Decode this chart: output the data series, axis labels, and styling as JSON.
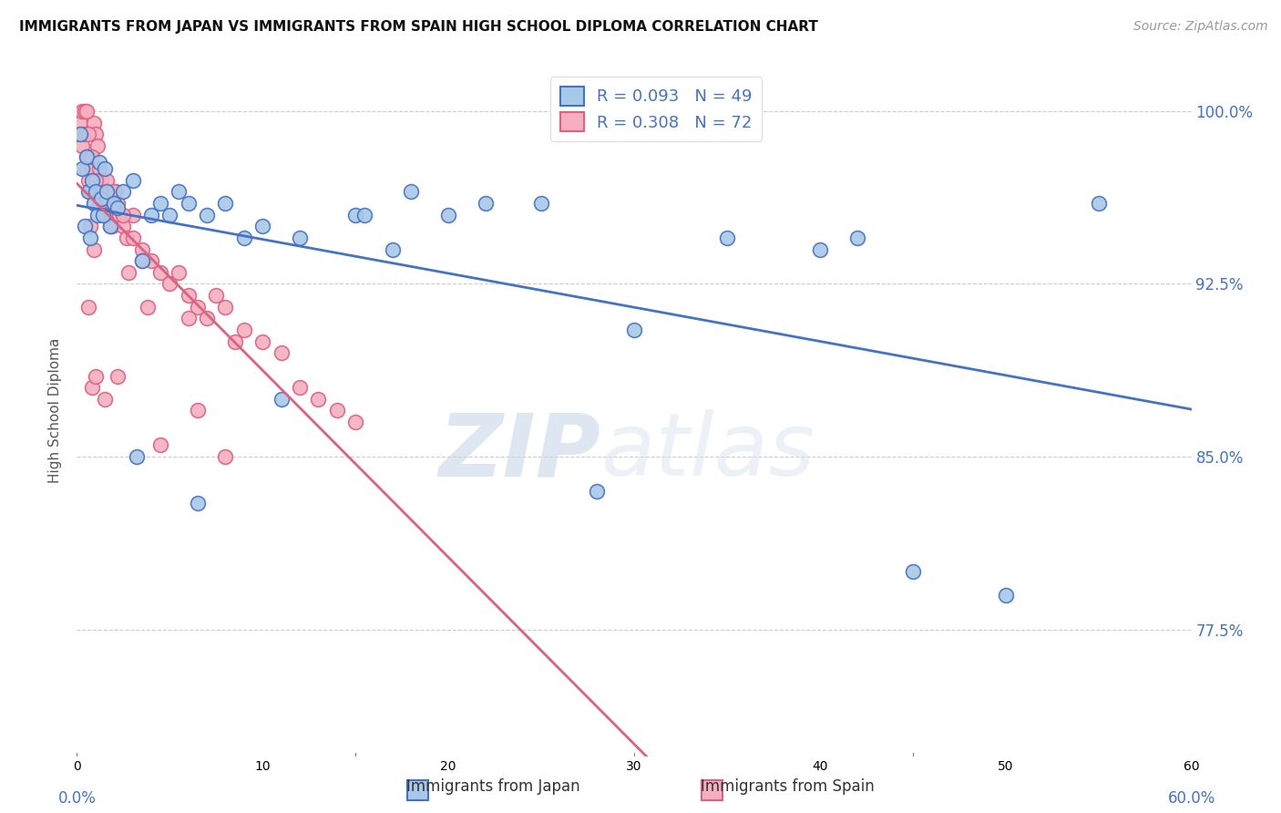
{
  "title": "IMMIGRANTS FROM JAPAN VS IMMIGRANTS FROM SPAIN HIGH SCHOOL DIPLOMA CORRELATION CHART",
  "source": "Source: ZipAtlas.com",
  "ylabel": "High School Diploma",
  "ytick_vals": [
    77.5,
    85.0,
    92.5,
    100.0
  ],
  "ytick_labels": [
    "77.5%",
    "85.0%",
    "92.5%",
    "100.0%"
  ],
  "xmin": 0.0,
  "xmax": 60.0,
  "ymin": 72.0,
  "ymax": 102.0,
  "legend_r_japan": "R = 0.093",
  "legend_n_japan": "N = 49",
  "legend_r_spain": "R = 0.308",
  "legend_n_spain": "N = 72",
  "color_japan_face": "#a8c8e8",
  "color_spain_face": "#f4b0c0",
  "color_japan_edge": "#4472c4",
  "color_spain_edge": "#e06080",
  "color_japan_line": "#4472c4",
  "color_spain_line": "#e06080",
  "japan_x": [
    0.3,
    0.4,
    0.5,
    0.6,
    0.7,
    0.8,
    0.9,
    1.0,
    1.1,
    1.2,
    1.3,
    1.5,
    1.6,
    1.8,
    2.0,
    2.2,
    2.5,
    3.0,
    3.5,
    4.0,
    4.5,
    5.0,
    5.5,
    6.0,
    7.0,
    8.0,
    9.0,
    10.0,
    12.0,
    15.0,
    17.0,
    20.0,
    25.0,
    30.0,
    35.0,
    40.0,
    15.5,
    18.0,
    22.0,
    28.0,
    42.0,
    45.0,
    50.0,
    55.0,
    3.2,
    1.4,
    6.5,
    11.0,
    0.2
  ],
  "japan_y": [
    97.5,
    95.0,
    98.0,
    96.5,
    94.5,
    97.0,
    96.0,
    96.5,
    95.5,
    97.8,
    96.2,
    97.5,
    96.5,
    95.0,
    96.0,
    95.8,
    96.5,
    97.0,
    93.5,
    95.5,
    96.0,
    95.5,
    96.5,
    96.0,
    95.5,
    96.0,
    94.5,
    95.0,
    94.5,
    95.5,
    94.0,
    95.5,
    96.0,
    90.5,
    94.5,
    94.0,
    95.5,
    96.5,
    96.0,
    83.5,
    94.5,
    80.0,
    79.0,
    96.0,
    85.0,
    95.5,
    83.0,
    87.5,
    99.0
  ],
  "spain_x": [
    0.2,
    0.3,
    0.4,
    0.5,
    0.5,
    0.6,
    0.7,
    0.7,
    0.8,
    0.9,
    1.0,
    1.0,
    1.1,
    1.2,
    1.3,
    1.4,
    1.5,
    1.6,
    1.7,
    1.8,
    1.9,
    2.0,
    2.1,
    2.2,
    2.3,
    2.5,
    2.7,
    3.0,
    0.3,
    0.4,
    0.5,
    0.6,
    0.8,
    1.0,
    1.2,
    1.5,
    1.8,
    2.0,
    2.5,
    3.0,
    3.5,
    4.0,
    4.5,
    5.0,
    5.5,
    6.0,
    6.5,
    7.0,
    7.5,
    8.0,
    9.0,
    10.0,
    11.0,
    12.0,
    13.0,
    14.0,
    15.0,
    3.5,
    6.0,
    8.5,
    2.2,
    1.5,
    0.8,
    0.6,
    4.5,
    6.5,
    8.0,
    1.0,
    2.8,
    0.9,
    0.7,
    3.8
  ],
  "spain_y": [
    99.5,
    98.5,
    99.0,
    98.0,
    97.5,
    97.0,
    98.0,
    96.5,
    97.5,
    99.5,
    99.0,
    97.0,
    98.5,
    97.5,
    97.0,
    96.0,
    96.5,
    97.0,
    95.5,
    96.0,
    95.0,
    95.5,
    96.5,
    96.0,
    95.5,
    95.0,
    94.5,
    95.5,
    100.0,
    100.0,
    100.0,
    99.0,
    98.0,
    97.0,
    96.0,
    95.5,
    95.0,
    96.5,
    95.5,
    94.5,
    94.0,
    93.5,
    93.0,
    92.5,
    93.0,
    92.0,
    91.5,
    91.0,
    92.0,
    91.5,
    90.5,
    90.0,
    89.5,
    88.0,
    87.5,
    87.0,
    86.5,
    93.5,
    91.0,
    90.0,
    88.5,
    87.5,
    88.0,
    91.5,
    85.5,
    87.0,
    85.0,
    88.5,
    93.0,
    94.0,
    95.0,
    91.5
  ],
  "watermark_zip": "ZIP",
  "watermark_atlas": "atlas",
  "background_color": "#ffffff",
  "grid_color": "#cccccc"
}
